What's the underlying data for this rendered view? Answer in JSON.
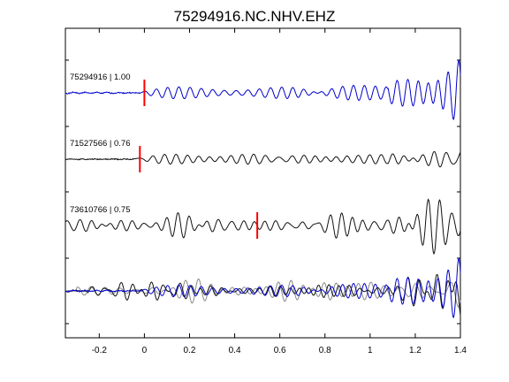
{
  "colors": {
    "background": "#ffffff",
    "axes": "#000000",
    "main_trace": "#0000cc",
    "other_trace": "#111111",
    "overlay_gray": "#888888",
    "pick_marker": "#ff0000"
  },
  "chart_data": {
    "type": "line",
    "title": "75294916.NC.NHV.EHZ",
    "xlabel": "",
    "ylabel": "",
    "xlim": [
      -0.35,
      1.4
    ],
    "grid": false,
    "legend": "none",
    "x_ticks": [
      -0.2,
      0,
      0.2,
      0.4,
      0.6,
      0.8,
      1,
      1.2,
      1.4
    ],
    "x_tick_labels": [
      "-0.2",
      "0",
      "0.2",
      "0.4",
      "0.6",
      "0.8",
      "1",
      "1.2",
      "1.4"
    ],
    "traces": [
      {
        "id": "trace-1",
        "label": "75294916 | 1.00",
        "color": "#0000cc",
        "pick_x": 0.0,
        "onset": -0.02,
        "seed": 1
      },
      {
        "id": "trace-2",
        "label": "71527566 | 0.76",
        "color": "#111111",
        "pick_x": -0.02,
        "onset": -0.04,
        "seed": 2
      },
      {
        "id": "trace-3",
        "label": "73610766 | 0.75",
        "color": "#111111",
        "pick_x": 0.5,
        "onset": -0.35,
        "seed": 3
      }
    ],
    "overlay": {
      "id": "overlay",
      "series": [
        {
          "color": "#888888",
          "seed": 4,
          "onset": -0.3
        },
        {
          "color": "#111111",
          "seed": 5,
          "onset": -0.25
        },
        {
          "color": "#0000cc",
          "seed": 1,
          "onset": -0.02
        }
      ]
    }
  }
}
